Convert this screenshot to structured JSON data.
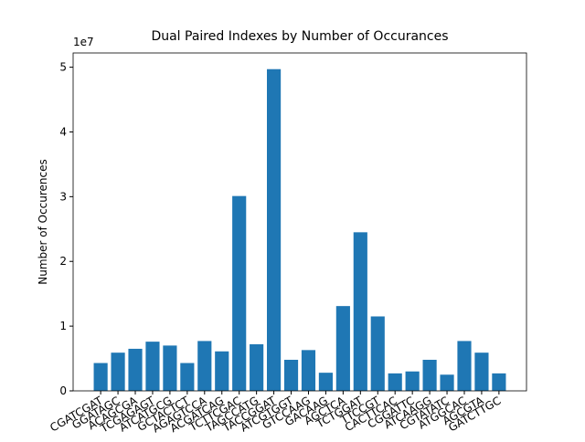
{
  "chart_data": {
    "type": "bar",
    "title": "Dual Paired Indexes by Number of Occurances",
    "ylabel": "Number of Occurences",
    "y_offset_label": "1e7",
    "categories": [
      "CGATCGAT",
      "GGATAGC",
      "ACAGCGA",
      "TCGAGAGT",
      "ATCATGCG",
      "GCTACTCT",
      "AGAGTCCA",
      "ACGATCAG",
      "TCTTCGAC",
      "TAGCCATG",
      "TACCGGAT",
      "ATCGTGGT",
      "GTCCAAG",
      "GACAAG",
      "AGCTCA",
      "TCTGGAT",
      "TTCCGT",
      "CACTTCAC",
      "CGGATTC",
      "ATCAAGG",
      "CGTATATC",
      "ATGGCAC",
      "AGCGTA",
      "GATCTTGC"
    ],
    "values": [
      0.43,
      0.59,
      0.65,
      0.76,
      0.7,
      0.43,
      0.77,
      0.61,
      3.01,
      0.72,
      4.97,
      0.48,
      0.63,
      0.28,
      1.31,
      2.45,
      1.15,
      0.27,
      0.3,
      0.48,
      0.25,
      0.77,
      0.59,
      0.27
    ],
    "color": "#1f77b4",
    "ylim": [
      0,
      5.22
    ],
    "yticks": [
      0,
      1,
      2,
      3,
      4,
      5
    ],
    "grid": false
  }
}
